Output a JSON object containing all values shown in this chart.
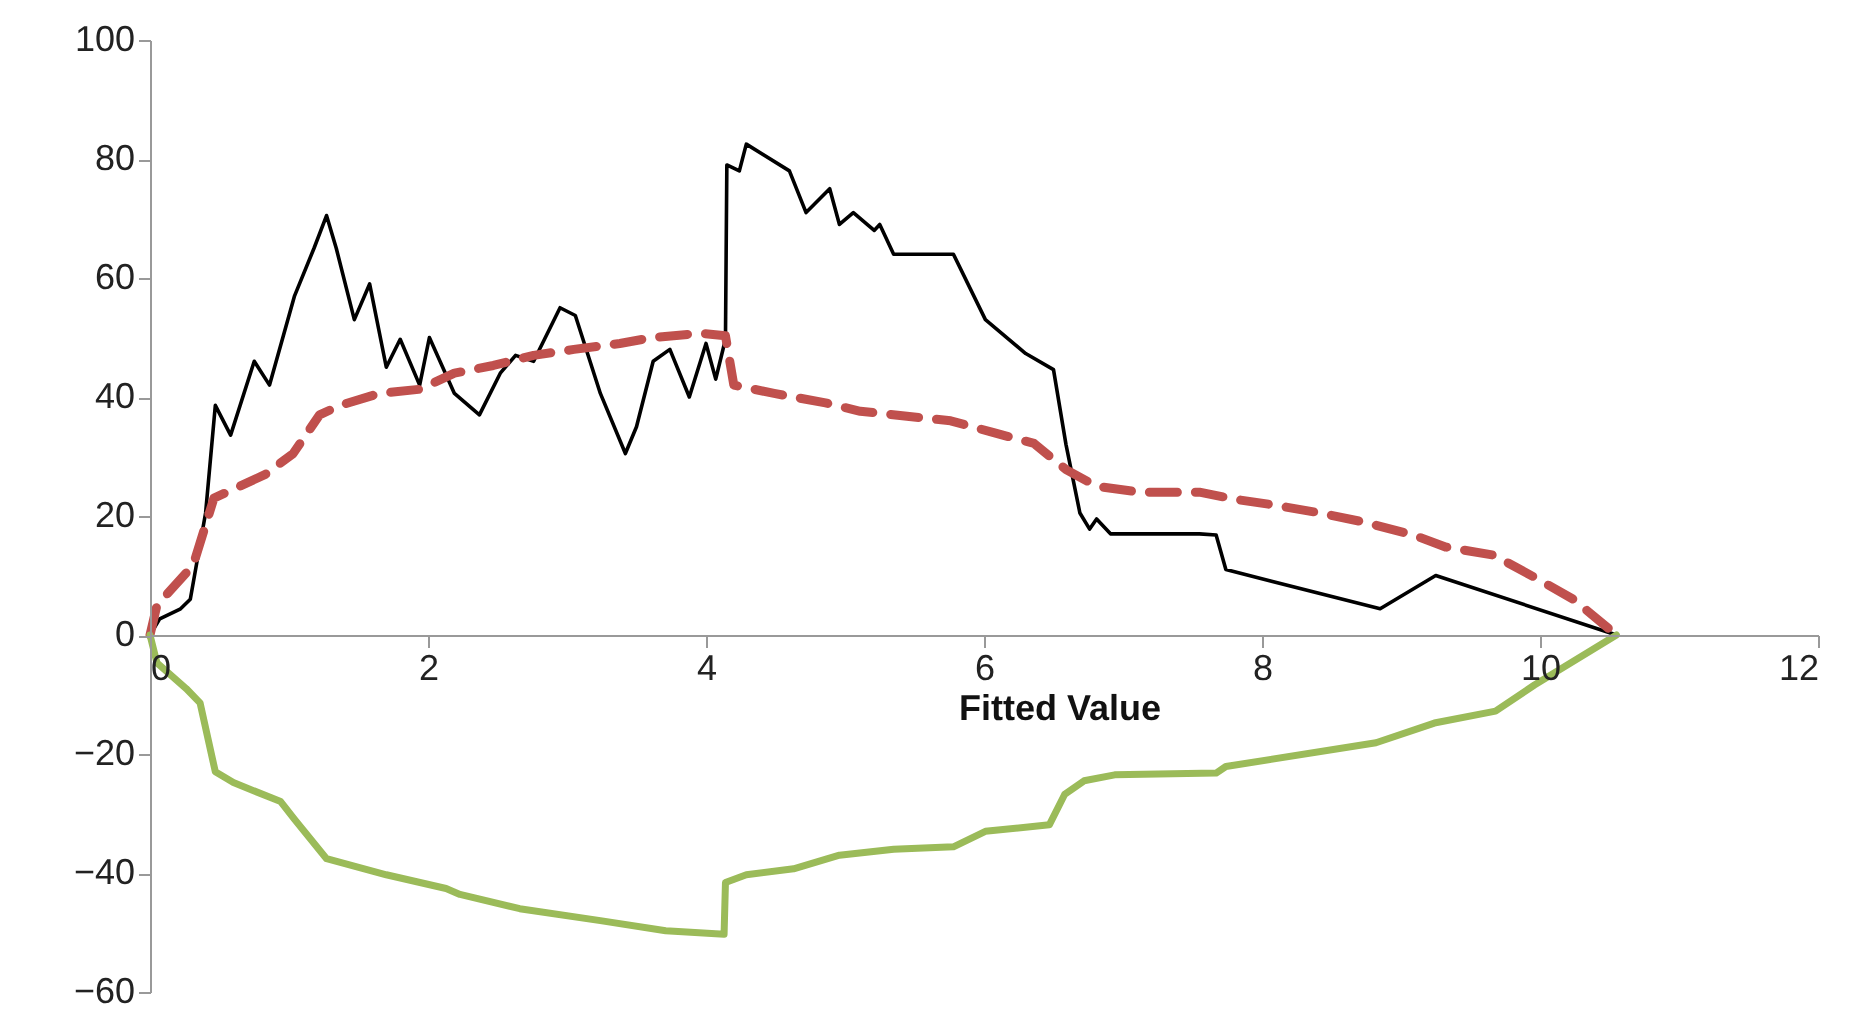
{
  "chart_data": {
    "type": "line",
    "xlabel": "Fitted Value",
    "xlim": [
      0,
      12
    ],
    "xticks": [
      0,
      2,
      4,
      6,
      8,
      10,
      12
    ],
    "ylim": [
      -60,
      100
    ],
    "yticks": [
      -60,
      -40,
      -20,
      0,
      20,
      40,
      60,
      80,
      100
    ],
    "series": [
      {
        "color": "#000000",
        "line_style": "solid",
        "x": [
          0,
          0.07,
          0.22,
          0.29,
          0.4,
          0.47,
          0.58,
          0.75,
          0.86,
          1.04,
          1.18,
          1.27,
          1.34,
          1.47,
          1.58,
          1.7,
          1.8,
          1.94,
          2.01,
          2.19,
          2.37,
          2.52,
          2.63,
          2.76,
          2.95,
          3.06,
          3.24,
          3.42,
          3.5,
          3.62,
          3.74,
          3.88,
          4.0,
          4.07,
          4.14,
          4.15,
          4.24,
          4.29,
          4.6,
          4.72,
          4.89,
          4.96,
          5.06,
          5.21,
          5.25,
          5.35,
          5.78,
          6.01,
          6.3,
          6.5,
          6.59,
          6.69,
          6.76,
          6.81,
          6.91,
          7.55,
          7.67,
          7.74,
          8.85,
          9.25,
          10.55
        ],
        "values": [
          0,
          2.7,
          4.4,
          6,
          20.5,
          38.6,
          33.6,
          46,
          42,
          57,
          65,
          70.5,
          65,
          53,
          59,
          45,
          49.7,
          42,
          50,
          40.6,
          37,
          44,
          47,
          46,
          55,
          53.7,
          40.6,
          30.5,
          35,
          46,
          48,
          40,
          49,
          43,
          49.7,
          79,
          78,
          82.5,
          78,
          71,
          75,
          69,
          71,
          68,
          69,
          64,
          64,
          53,
          47.3,
          44.6,
          32,
          20.5,
          17.8,
          19.5,
          17,
          17,
          16.8,
          11,
          4.4,
          10,
          0
        ]
      },
      {
        "color": "#c0504d",
        "line_style": "dashed",
        "x": [
          0,
          0.05,
          0.31,
          0.46,
          0.6,
          0.83,
          1.03,
          1.22,
          1.37,
          1.65,
          1.94,
          2.19,
          2.47,
          2.76,
          3.05,
          3.38,
          3.62,
          3.96,
          4.14,
          4.2,
          4.49,
          4.86,
          5.11,
          5.76,
          6.07,
          6.36,
          6.59,
          6.81,
          7.12,
          7.55,
          7.81,
          8.1,
          8.42,
          8.73,
          9.09,
          9.32,
          9.67,
          9.96,
          10.24,
          10.55
        ],
        "values": [
          0,
          5,
          11.7,
          23,
          24.5,
          27,
          30.5,
          37,
          38.6,
          40.6,
          41.3,
          44,
          45.3,
          47,
          48,
          49,
          50,
          50.7,
          50.3,
          42,
          40.6,
          39,
          37.6,
          36,
          34,
          32.2,
          27.8,
          25,
          24,
          24,
          22.8,
          21.8,
          20.5,
          19,
          16.8,
          14.8,
          13.4,
          9.7,
          6,
          0
        ]
      },
      {
        "color": "#9bbb59",
        "line_style": "solid",
        "x": [
          0,
          0.05,
          0.26,
          0.36,
          0.47,
          0.6,
          0.94,
          1.04,
          1.27,
          1.7,
          2.13,
          2.23,
          2.66,
          3.24,
          3.71,
          4.13,
          4.14,
          4.29,
          4.63,
          4.96,
          5.35,
          5.78,
          6.01,
          6.47,
          6.58,
          6.72,
          6.94,
          7.67,
          7.74,
          8.82,
          9.24,
          9.68,
          9.96,
          10.55
        ],
        "values": [
          0,
          -4.7,
          -9,
          -11.4,
          -23,
          -24.8,
          -28,
          -31,
          -37.6,
          -40.3,
          -42.6,
          -43.6,
          -46,
          -48,
          -49.7,
          -50.3,
          -41.6,
          -40.3,
          -39.3,
          -37,
          -36,
          -35.6,
          -33,
          -31.9,
          -26.8,
          -24.5,
          -23.5,
          -23.2,
          -22.1,
          -18.1,
          -14.8,
          -12.8,
          -8.4,
          0
        ]
      }
    ]
  }
}
